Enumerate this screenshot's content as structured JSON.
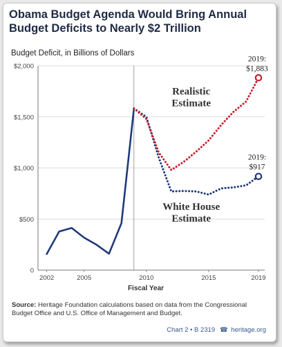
{
  "title_line1": "Obama Budget Agenda Would Bring Annual",
  "title_line2": "Budget Deficits to Nearly $2 Trillion",
  "ylabel": "Budget Deficit, in Billions of Dollars",
  "xlabel": "Fiscal Year",
  "source_label": "Source:",
  "source_text": "Heritage Foundation calculations based on data from the Congressional Budget Office and U.S. Office of Management and Budget.",
  "footer_chart": "Chart 2 • B 2319",
  "footer_site": "heritage.org",
  "colors": {
    "historical": "#1f3a7a",
    "white_house": "#1f3a7a",
    "realistic": "#c8202e"
  },
  "chart_data": {
    "type": "line",
    "x_ticks": [
      2002,
      2005,
      2010,
      2015,
      2019
    ],
    "y_ticks": [
      0,
      500,
      1000,
      1500,
      2000
    ],
    "y_tick_labels": [
      "0",
      "$500",
      "$1,000",
      "$1,500",
      "$2,000"
    ],
    "xlim": [
      2001.3,
      2019.5
    ],
    "ylim": [
      0,
      2000
    ],
    "projection_divider_x": 2009,
    "series": [
      {
        "style": "solid",
        "color": "#1f3a7a",
        "x": [
          2002,
          2003,
          2004,
          2005,
          2006,
          2007,
          2008,
          2009
        ],
        "y": [
          158,
          378,
          413,
          318,
          248,
          161,
          459,
          1583
        ]
      },
      {
        "name": "White House Estimate",
        "style": "dotted",
        "color": "#1f3a7a",
        "x": [
          2009,
          2010,
          2011,
          2012,
          2013,
          2014,
          2015,
          2016,
          2017,
          2018,
          2019
        ],
        "y": [
          1583,
          1500,
          1100,
          770,
          775,
          770,
          740,
          800,
          810,
          830,
          917
        ]
      },
      {
        "name": "Realistic Estimate",
        "style": "dotted",
        "color": "#c8202e",
        "x": [
          2009,
          2010,
          2011,
          2012,
          2013,
          2014,
          2015,
          2016,
          2017,
          2018,
          2019
        ],
        "y": [
          1583,
          1480,
          1150,
          980,
          1060,
          1160,
          1270,
          1420,
          1550,
          1650,
          1883
        ]
      }
    ],
    "annotations": [
      {
        "text": "2019:",
        "value_text": "$1,883",
        "x": 2019,
        "y": 1883,
        "color": "#c8202e"
      },
      {
        "text": "2019:",
        "value_text": "$917",
        "x": 2019,
        "y": 917,
        "color": "#1f3a7a"
      }
    ],
    "series_labels": [
      {
        "line1": "Realistic",
        "line2": "Estimate",
        "x": 2013.6,
        "y": 1720
      },
      {
        "line1": "White House",
        "line2": "Estimate",
        "x": 2013.6,
        "y": 590
      }
    ]
  }
}
